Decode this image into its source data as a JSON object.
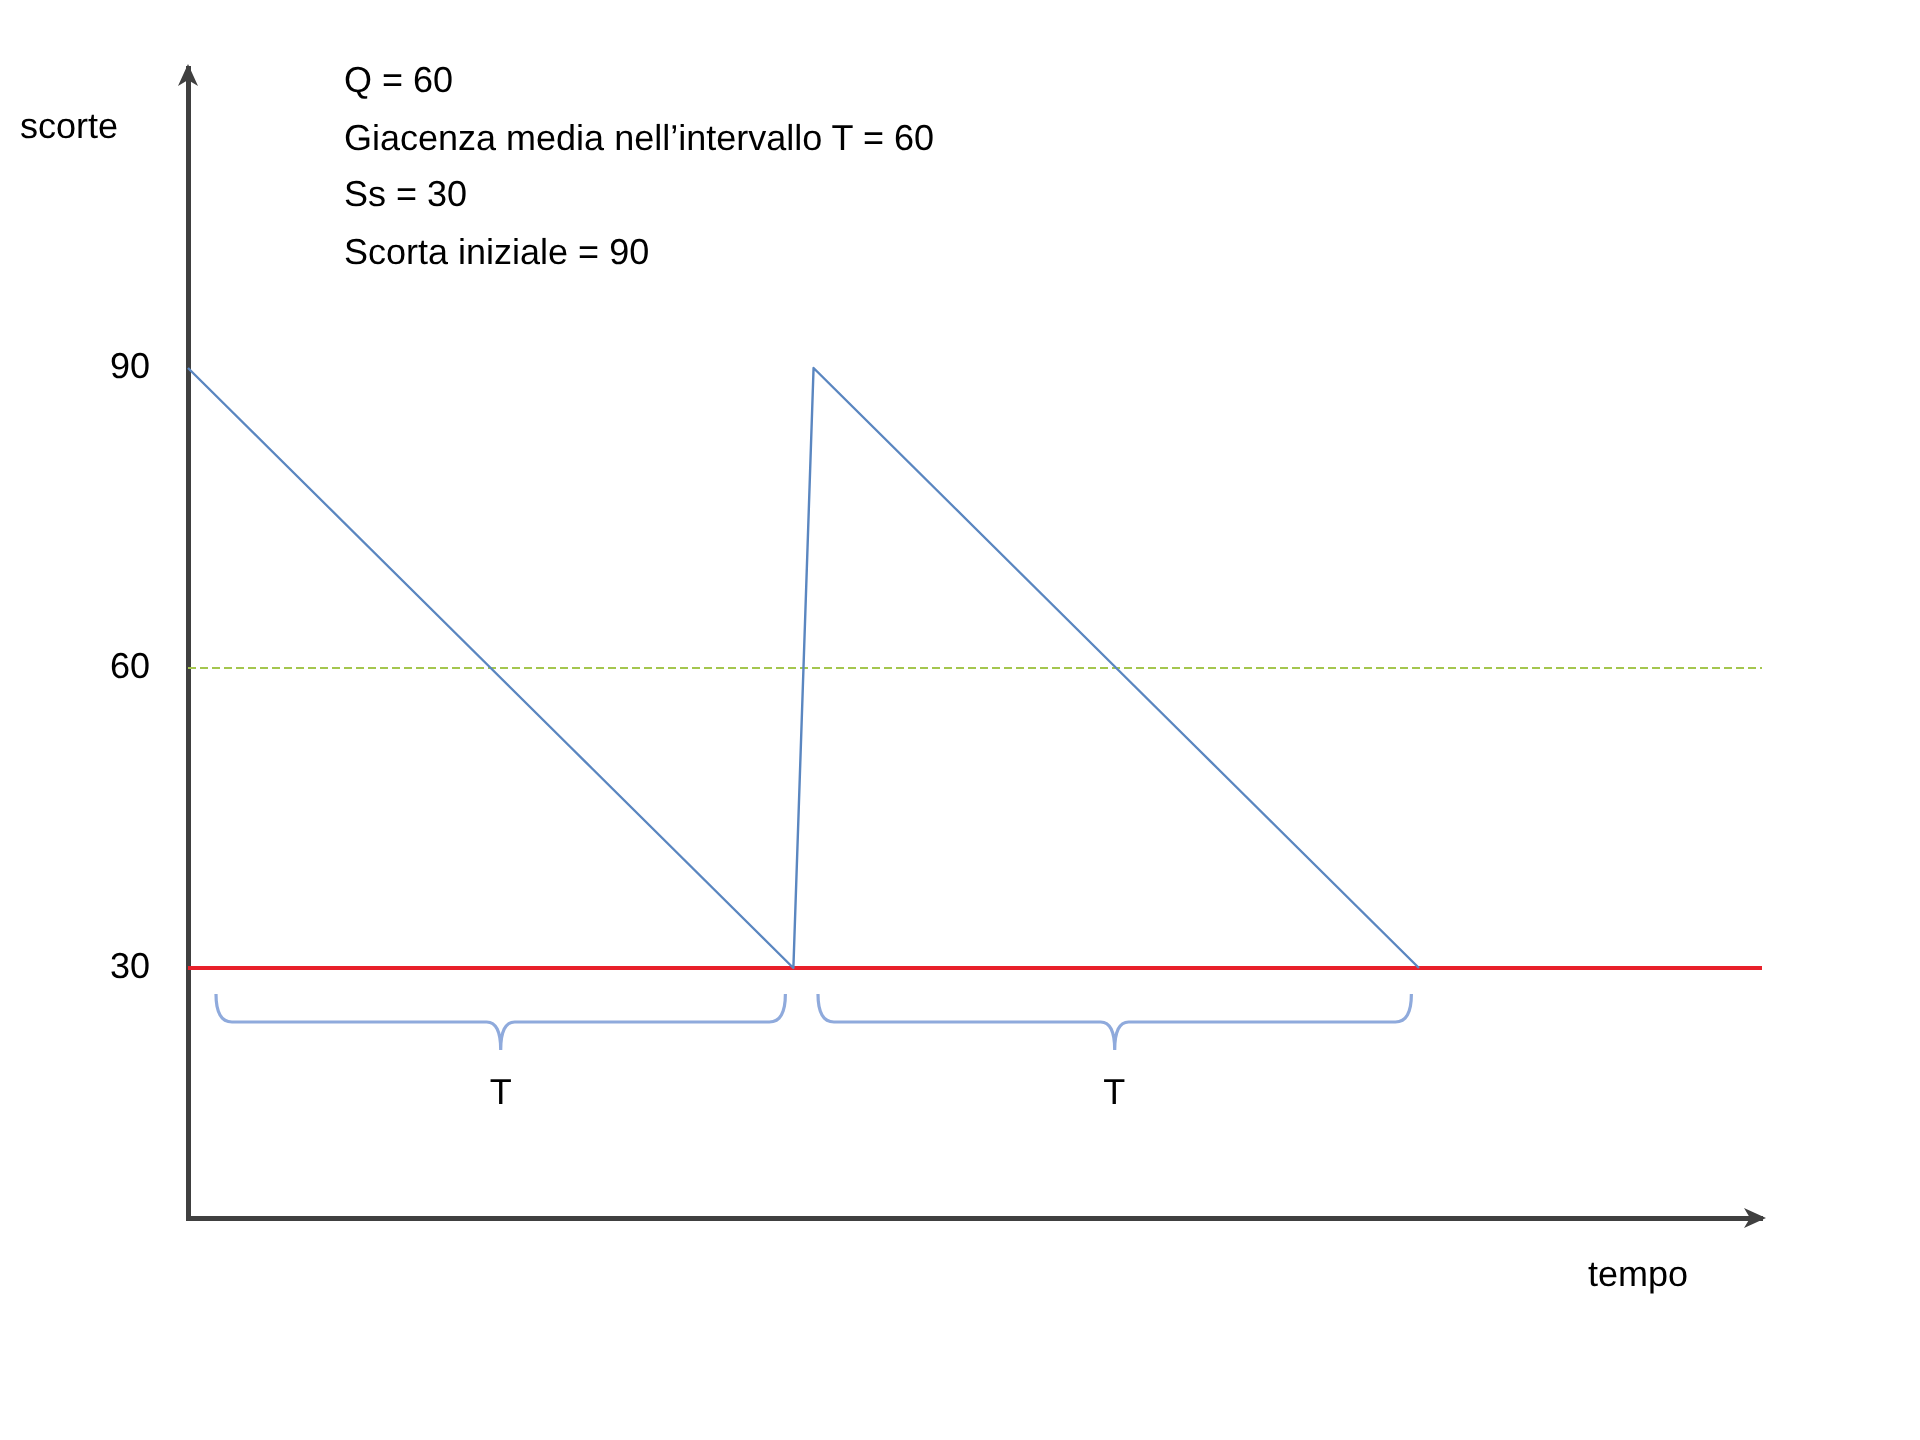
{
  "chart_data": {
    "type": "line",
    "ylabel": "scorte",
    "xlabel": "tempo",
    "annotations": [
      "Q = 60",
      "Giacenza media nell’intervallo T = 60",
      "Ss = 30",
      "Scorta iniziale = 90",
      "T",
      "T"
    ],
    "categories": [
      null,
      null,
      null,
      null,
      null,
      null,
      null,
      null,
      null,
      null,
      null,
      null,
      null,
      null,
      null,
      null,
      null,
      null,
      null,
      null,
      null,
      null,
      null,
      null,
      null,
      null,
      null,
      null,
      null,
      null,
      null,
      null,
      null,
      null,
      null,
      null,
      null,
      null,
      null,
      null,
      null,
      null,
      null,
      null,
      null,
      null,
      null,
      null,
      null,
      null,
      null,
      null,
      null,
      null,
      null,
      null,
      null,
      null,
      null,
      null,
      null,
      null,
      null,
      null,
      null,
      null,
      null,
      null,
      null,
      null,
      null,
      null,
      null,
      null,
      null,
      null,
      null,
      null,
      null
    ],
    "series": [
      {
        "color": "#5a86c0",
        "values": [
          90,
          88,
          86,
          84,
          82,
          80,
          78,
          76,
          74,
          72,
          70,
          68,
          66,
          64,
          62,
          60,
          58,
          56,
          54,
          52,
          50,
          48,
          46,
          44,
          42,
          40,
          38,
          36,
          34,
          32,
          30,
          90,
          88,
          86,
          84,
          82,
          80,
          78,
          76,
          74,
          72,
          70,
          68,
          66,
          64,
          62,
          60,
          58,
          56,
          54,
          52,
          50,
          48,
          46,
          44,
          42,
          40,
          38,
          36,
          34,
          32,
          30,
          null,
          null,
          null,
          null,
          null,
          null,
          null,
          null,
          null,
          null,
          null,
          null,
          null,
          null,
          null,
          null,
          null
        ]
      }
    ],
    "ylim": [
      5,
      120
    ],
    "yticks": [
      30,
      60,
      90
    ],
    "tick_labels": "y",
    "ref_lines": [
      {
        "axis": "y",
        "value": 60,
        "color": "#a4c64e",
        "line_style": "dashed"
      },
      {
        "axis": "y",
        "value": 30,
        "color": "#e8202a",
        "line_style": "solid"
      }
    ]
  }
}
